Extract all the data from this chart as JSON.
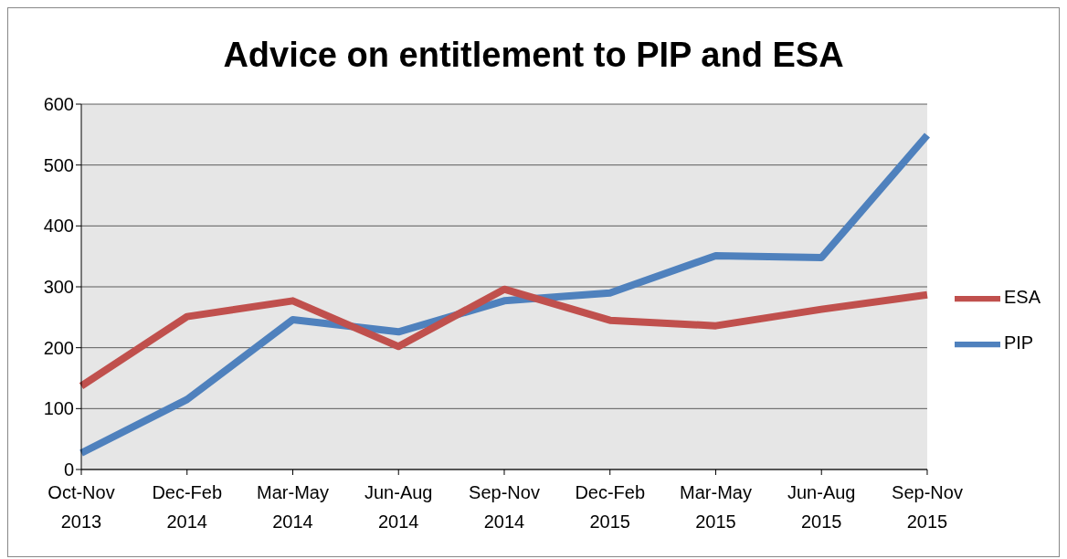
{
  "chart_data": {
    "type": "line",
    "title": "Advice on entitlement to PIP and ESA",
    "categories": [
      "Oct-Nov 2013",
      "Dec-Feb 2014",
      "Mar-May 2014",
      "Jun-Aug 2014",
      "Sep-Nov 2014",
      "Dec-Feb 2015",
      "Mar-May 2015",
      "Jun-Aug 2015",
      "Sep-Nov 2015"
    ],
    "series": [
      {
        "name": "PIP",
        "color": "#4f81bd",
        "values": [
          27,
          115,
          246,
          226,
          277,
          290,
          351,
          348,
          549
        ]
      },
      {
        "name": "ESA",
        "color": "#c0504d",
        "values": [
          137,
          251,
          277,
          202,
          296,
          245,
          236,
          263,
          287
        ]
      }
    ],
    "ylim": [
      0,
      600
    ],
    "yticks": [
      0,
      100,
      200,
      300,
      400,
      500,
      600
    ],
    "grid": "y",
    "legend": "right",
    "marker": "none",
    "line_style": "solid"
  }
}
